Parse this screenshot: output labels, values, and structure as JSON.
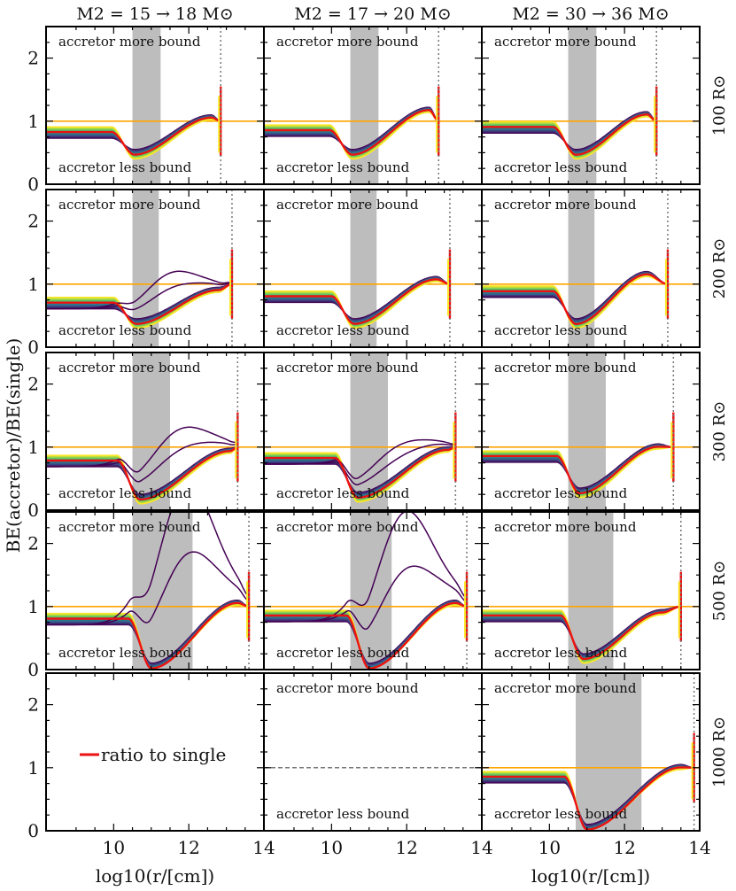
{
  "chart_data": {
    "type": "line",
    "ylabel": "BE(accretor)/BE(single)",
    "xlabel": "log10(r/[cm])",
    "xlim": [
      8.2,
      14
    ],
    "ylim": [
      0,
      2.5
    ],
    "x_ticks": [
      "10",
      "12",
      "14"
    ],
    "y_ticks": [
      "0",
      "1",
      "2"
    ],
    "columns": [
      {
        "title": "M2 = 15 → 18 M⊙",
        "mass_low": "15",
        "mass_high": "18"
      },
      {
        "title": "M2 = 17 → 20 M⊙",
        "mass_low": "17",
        "mass_high": "20"
      },
      {
        "title": "M2 = 30 → 36 M⊙",
        "mass_low": "30",
        "mass_high": "36"
      }
    ],
    "rows": [
      {
        "label": "100 R⊙",
        "value": "100"
      },
      {
        "label": "200 R⊙",
        "value": "200"
      },
      {
        "label": "300 R⊙",
        "value": "300"
      },
      {
        "label": "500 R⊙",
        "value": "500"
      },
      {
        "label": "1000 R⊙",
        "value": "1000"
      }
    ],
    "annotation_top": "accretor more bound",
    "annotation_bottom": "accretor less bound",
    "legend": {
      "label": "ratio to single",
      "color": "#ee1111",
      "location": "center"
    },
    "reference_line": {
      "y": 1.0,
      "color": "#ffa500"
    },
    "colormap": [
      "#440154",
      "#3b528b",
      "#21918c",
      "#5ec962",
      "#fde725"
    ],
    "panels": [
      {
        "row": 0,
        "col": 0,
        "shade": [
          10.5,
          11.25
        ],
        "vline": 12.85,
        "y_plateau": 0.82,
        "dip_x": 10.55,
        "dip_y": 0.55,
        "x_peak": 12.6,
        "y_peak": 1.1,
        "x_end": 12.85,
        "bump": 0,
        "n_lines": 14
      },
      {
        "row": 0,
        "col": 1,
        "shade": [
          10.5,
          11.25
        ],
        "vline": 12.85,
        "y_plateau": 0.85,
        "dip_x": 10.55,
        "dip_y": 0.55,
        "x_peak": 12.6,
        "y_peak": 1.22,
        "x_end": 12.85,
        "bump": 0,
        "n_lines": 14
      },
      {
        "row": 0,
        "col": 2,
        "shade": [
          10.5,
          11.25
        ],
        "vline": 12.85,
        "y_plateau": 0.9,
        "dip_x": 10.7,
        "dip_y": 0.55,
        "x_peak": 12.6,
        "y_peak": 1.15,
        "x_end": 12.85,
        "bump": 0,
        "n_lines": 12
      },
      {
        "row": 1,
        "col": 0,
        "shade": [
          10.5,
          11.2
        ],
        "vline": 13.15,
        "y_plateau": 0.7,
        "dip_x": 10.6,
        "dip_y": 0.45,
        "x_peak": 12.8,
        "y_peak": 0.95,
        "x_end": 13.15,
        "bump": 0.55,
        "n_lines": 14
      },
      {
        "row": 1,
        "col": 1,
        "shade": [
          10.5,
          11.2
        ],
        "vline": 13.15,
        "y_plateau": 0.8,
        "dip_x": 10.6,
        "dip_y": 0.45,
        "x_peak": 12.8,
        "y_peak": 1.12,
        "x_end": 13.15,
        "bump": 0,
        "n_lines": 14
      },
      {
        "row": 1,
        "col": 2,
        "shade": [
          10.5,
          11.2
        ],
        "vline": 13.15,
        "y_plateau": 0.88,
        "dip_x": 10.7,
        "dip_y": 0.45,
        "x_peak": 12.6,
        "y_peak": 1.2,
        "x_end": 13.15,
        "bump": 0,
        "n_lines": 12
      },
      {
        "row": 2,
        "col": 0,
        "shade": [
          10.5,
          11.5
        ],
        "vline": 13.3,
        "y_plateau": 0.78,
        "dip_x": 10.7,
        "dip_y": 0.25,
        "x_peak": 13.1,
        "y_peak": 0.98,
        "x_end": 13.3,
        "bump": 0.75,
        "n_lines": 14
      },
      {
        "row": 2,
        "col": 1,
        "shade": [
          10.5,
          11.5
        ],
        "vline": 13.3,
        "y_plateau": 0.82,
        "dip_x": 10.7,
        "dip_y": 0.28,
        "x_peak": 13.1,
        "y_peak": 1.0,
        "x_end": 13.3,
        "bump": 0.45,
        "n_lines": 14
      },
      {
        "row": 2,
        "col": 2,
        "shade": [
          10.5,
          11.5
        ],
        "vline": 13.3,
        "y_plateau": 0.85,
        "dip_x": 10.8,
        "dip_y": 0.35,
        "x_peak": 12.9,
        "y_peak": 1.05,
        "x_end": 13.3,
        "bump": 0,
        "n_lines": 12
      },
      {
        "row": 3,
        "col": 0,
        "shade": [
          10.5,
          12.1
        ],
        "vline": 13.6,
        "y_plateau": 0.8,
        "dip_x": 11.0,
        "dip_y": 0.1,
        "x_peak": 13.3,
        "y_peak": 1.1,
        "x_end": 13.6,
        "bump": 2.5,
        "n_lines": 14
      },
      {
        "row": 3,
        "col": 1,
        "shade": [
          10.5,
          11.6
        ],
        "vline": 13.6,
        "y_plateau": 0.85,
        "dip_x": 11.0,
        "dip_y": 0.1,
        "x_peak": 13.3,
        "y_peak": 1.1,
        "x_end": 13.6,
        "bump": 2.05,
        "n_lines": 14
      },
      {
        "row": 3,
        "col": 2,
        "shade": [
          10.5,
          11.7
        ],
        "vline": 13.5,
        "y_plateau": 0.85,
        "dip_x": 10.9,
        "dip_y": 0.25,
        "x_peak": 13.0,
        "y_peak": 0.95,
        "x_end": 13.5,
        "bump": 0,
        "n_lines": 12
      },
      {
        "row": 4,
        "col": 2,
        "shade": [
          10.7,
          12.45
        ],
        "vline": 13.85,
        "y_plateau": 0.85,
        "dip_x": 11.0,
        "dip_y": 0.1,
        "x_peak": 13.5,
        "y_peak": 1.05,
        "x_end": 13.85,
        "bump": 0,
        "n_lines": 12
      }
    ],
    "empty_panels": [
      {
        "row": 4,
        "col": 0,
        "legend": true
      },
      {
        "row": 4,
        "col": 1,
        "dashed_line": 1.0,
        "annotations": true
      }
    ]
  }
}
